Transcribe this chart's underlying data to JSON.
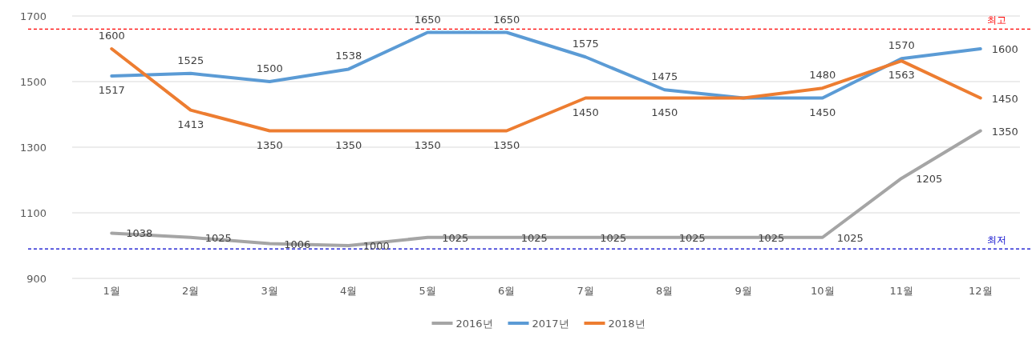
{
  "chart_data": {
    "type": "line",
    "categories": [
      "1월",
      "2월",
      "3월",
      "4월",
      "5월",
      "6월",
      "7월",
      "8월",
      "9월",
      "10월",
      "11월",
      "12월"
    ],
    "series": [
      {
        "name": "2016년",
        "color": "#a5a5a5",
        "values": [
          1038,
          1025,
          1006,
          1000,
          1025,
          1025,
          1025,
          1025,
          1025,
          1025,
          1205,
          1350
        ],
        "value_labels": [
          "1038",
          "1025",
          "1006",
          "1000",
          "1025",
          "1025",
          "1025",
          "1025",
          "1025",
          "1025",
          "1205",
          "1350"
        ]
      },
      {
        "name": "2017년",
        "color": "#5b9bd5",
        "values": [
          1517,
          1525,
          1500,
          1538,
          1650,
          1650,
          1575,
          1475,
          1450,
          1450,
          1570,
          1600
        ],
        "value_labels": [
          "1517",
          "1525",
          "1500",
          "1538",
          "1650",
          "1650",
          "1575",
          "1475",
          null,
          "1450",
          "1570",
          "1600"
        ]
      },
      {
        "name": "2018년",
        "color": "#ed7d31",
        "values": [
          1600,
          1413,
          1350,
          1350,
          1350,
          1350,
          1450,
          1450,
          1450,
          1480,
          1563,
          1450
        ],
        "value_labels": [
          "1600",
          "1413",
          "1350",
          "1350",
          "1350",
          "1350",
          "1450",
          "1450",
          null,
          "1480",
          "1563",
          "1450"
        ]
      }
    ],
    "ylim": [
      900,
      1700
    ],
    "yticks": [
      900,
      1100,
      1300,
      1500,
      1700
    ],
    "grid": "y",
    "legend": "bottom",
    "marker": "none",
    "line_style": "solid",
    "ref_lines": [
      {
        "axis": "y",
        "value": 1660,
        "label": "최고",
        "color": "#ff0000",
        "line_style": "dashed"
      },
      {
        "axis": "y",
        "value": 990,
        "label": "최저",
        "color": "#0000cc",
        "line_style": "dashed"
      }
    ]
  }
}
